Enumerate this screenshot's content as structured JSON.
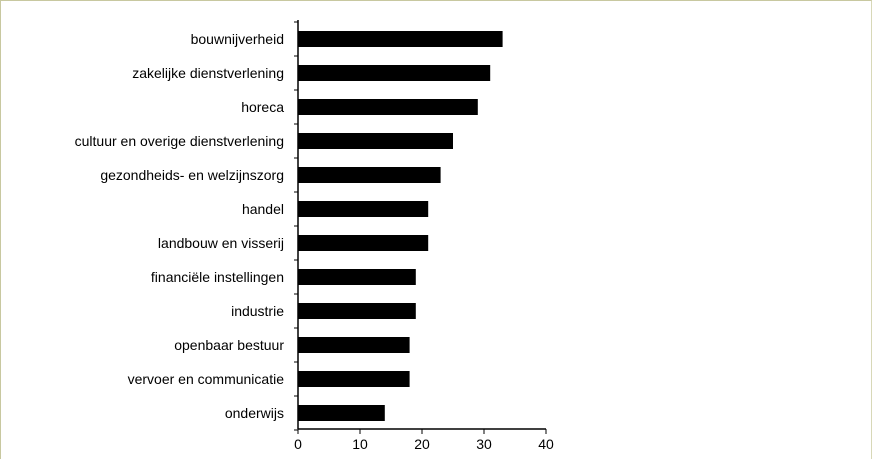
{
  "chart_data": {
    "type": "bar",
    "orientation": "horizontal",
    "categories": [
      "bouwnijverheid",
      "zakelijke dienstverlening",
      "horeca",
      "cultuur en overige dienstverlening",
      "gezondheids- en welzijnszorg",
      "handel",
      "landbouw en visserij",
      "financiële instellingen",
      "industrie",
      "openbaar bestuur",
      "vervoer en communicatie",
      "onderwijs"
    ],
    "values": [
      33,
      31,
      29,
      25,
      23,
      21,
      21,
      19,
      19,
      18,
      18,
      14
    ],
    "xlim": [
      0,
      40
    ],
    "xticks": [
      "0",
      "10",
      "20",
      "30",
      "40"
    ],
    "bar_color": "#000000",
    "grid": false
  }
}
